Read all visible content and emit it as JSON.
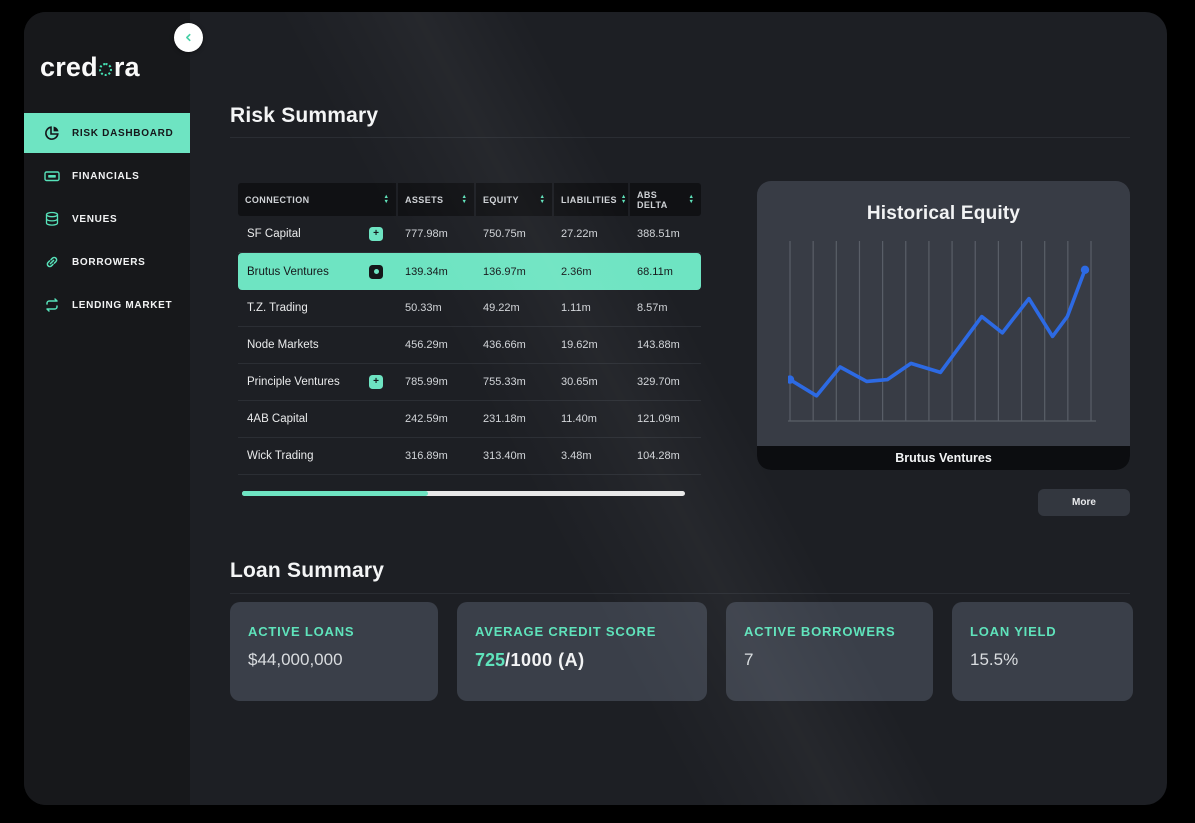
{
  "colors": {
    "accent": "#6EE4C2",
    "chart_line": "#2D6AE3",
    "chart_grid": "#5A5F68",
    "highlight_text": "#15171A"
  },
  "logo": {
    "prefix": "cred",
    "suffix": "ra"
  },
  "sidebar": {
    "items": [
      {
        "label": "RISK DASHBOARD",
        "icon": "pie-chart",
        "active": true
      },
      {
        "label": "FINANCIALS",
        "icon": "banknote",
        "active": false
      },
      {
        "label": "VENUES",
        "icon": "coin-stack",
        "active": false
      },
      {
        "label": "BORROWERS",
        "icon": "chain-link",
        "active": false
      },
      {
        "label": "LENDING MARKET",
        "icon": "repeat-arrows",
        "active": false
      }
    ]
  },
  "risk_summary": {
    "title": "Risk Summary",
    "table": {
      "columns": [
        "CONNECTION",
        "ASSETS",
        "EQUITY",
        "LIABILITIES",
        "ABS DELTA"
      ],
      "rows": [
        {
          "connection": "SF Capital",
          "badge": "plus",
          "assets": "777.98m",
          "equity": "750.75m",
          "liabilities": "27.22m",
          "abs_delta": "388.51m",
          "highlighted": false
        },
        {
          "connection": "Brutus Ventures",
          "badge": "dot",
          "assets": "139.34m",
          "equity": "136.97m",
          "liabilities": "2.36m",
          "abs_delta": "68.11m",
          "highlighted": true
        },
        {
          "connection": "T.Z. Trading",
          "badge": "",
          "assets": "50.33m",
          "equity": "49.22m",
          "liabilities": "1.11m",
          "abs_delta": "8.57m",
          "highlighted": false
        },
        {
          "connection": "Node Markets",
          "badge": "",
          "assets": "456.29m",
          "equity": "436.66m",
          "liabilities": "19.62m",
          "abs_delta": "143.88m",
          "highlighted": false
        },
        {
          "connection": "Principle Ventures",
          "badge": "plus",
          "assets": "785.99m",
          "equity": "755.33m",
          "liabilities": "30.65m",
          "abs_delta": "329.70m",
          "highlighted": false
        },
        {
          "connection": "4AB Capital",
          "badge": "",
          "assets": "242.59m",
          "equity": "231.18m",
          "liabilities": "11.40m",
          "abs_delta": "121.09m",
          "highlighted": false
        },
        {
          "connection": "Wick Trading",
          "badge": "",
          "assets": "316.89m",
          "equity": "313.40m",
          "liabilities": "3.48m",
          "abs_delta": "104.28m",
          "highlighted": false
        }
      ],
      "scrollbar": {
        "thumb_percent": 42
      }
    },
    "more_label": "More"
  },
  "chart_data": {
    "type": "line",
    "title": "Historical Equity",
    "caption": "Brutus Ventures",
    "x": [
      0,
      9,
      17,
      26,
      33,
      41,
      51,
      65,
      72,
      81,
      89,
      94,
      100
    ],
    "values": [
      23,
      14,
      30,
      22,
      23,
      32,
      27,
      58,
      49,
      68,
      47,
      58,
      84
    ],
    "ylim": [
      0,
      100
    ],
    "xlabel": "",
    "ylabel": "",
    "grid": "vertical",
    "gridline_count": 14,
    "legend": "none",
    "markers": "first-last"
  },
  "loan_summary": {
    "title": "Loan Summary",
    "cards": [
      {
        "label": "ACTIVE LOANS",
        "value": "$44,000,000"
      },
      {
        "label": "AVERAGE CREDIT SCORE",
        "value_primary": "725",
        "value_secondary": "/1000 (A)"
      },
      {
        "label": "ACTIVE BORROWERS",
        "value": "7"
      },
      {
        "label": "LOAN YIELD",
        "value": "15.5%"
      }
    ]
  }
}
